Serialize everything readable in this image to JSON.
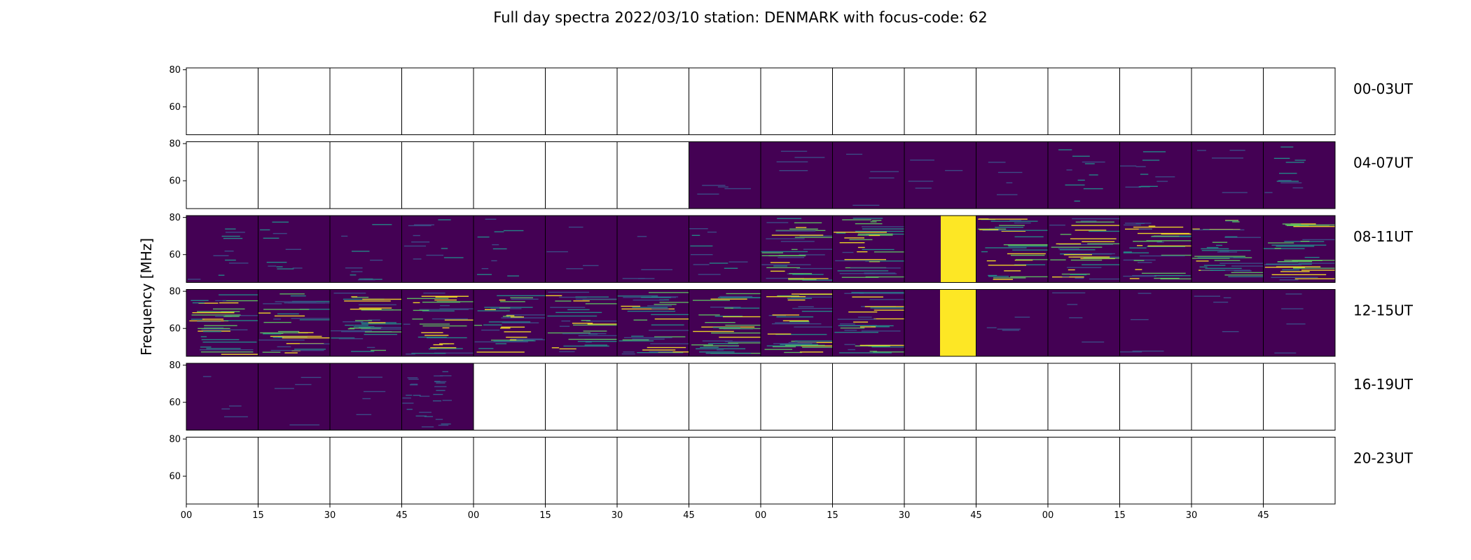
{
  "chart_data": {
    "type": "heatmap",
    "title": "Full day spectra 2022/03/10 station: DENMARK with focus-code: 62",
    "ylabel": "Frequency [MHz]",
    "y_ticks": [
      "80",
      "60"
    ],
    "ylim": [
      45,
      81
    ],
    "x_ticks": [
      "00",
      "15",
      "30",
      "45",
      "00",
      "15",
      "30",
      "45",
      "00",
      "15",
      "30",
      "45",
      "00",
      "15",
      "30",
      "45"
    ],
    "panels_per_row": 16,
    "colormap": "viridis",
    "colors": {
      "low": "#440154",
      "mid": "#21918c",
      "high": "#fde725"
    },
    "rows": [
      {
        "label": "00-03UT",
        "panels": [
          "empty",
          "empty",
          "empty",
          "empty",
          "empty",
          "empty",
          "empty",
          "empty",
          "empty",
          "empty",
          "empty",
          "empty",
          "empty",
          "empty",
          "empty",
          "empty"
        ]
      },
      {
        "label": "04-07UT",
        "panels": [
          "empty",
          "empty",
          "empty",
          "empty",
          "empty",
          "empty",
          "empty",
          "quiet",
          "quiet",
          "quiet",
          "quiet",
          "quiet",
          "weak",
          "weak",
          "quiet",
          "weak"
        ]
      },
      {
        "label": "08-11UT",
        "panels": [
          "weak",
          "weak",
          "weak",
          "weak",
          "weak",
          "quiet",
          "quiet",
          "weak",
          "strong",
          "strong",
          "saturated",
          "strong",
          "strong",
          "strong",
          "strong",
          "strong"
        ]
      },
      {
        "label": "12-15UT",
        "panels": [
          "strong",
          "strong",
          "strong",
          "strong",
          "strong",
          "strong",
          "strong",
          "strong",
          "strong",
          "strong",
          "saturated-right",
          "quiet",
          "quiet",
          "quiet",
          "quiet",
          "quiet"
        ]
      },
      {
        "label": "16-19UT",
        "panels": [
          "quiet",
          "quiet",
          "quiet",
          "noisy",
          "empty",
          "empty",
          "empty",
          "empty",
          "empty",
          "empty",
          "empty",
          "empty",
          "empty",
          "empty",
          "empty",
          "empty"
        ]
      },
      {
        "label": "20-23UT",
        "panels": [
          "empty",
          "empty",
          "empty",
          "empty",
          "empty",
          "empty",
          "empty",
          "empty",
          "empty",
          "empty",
          "empty",
          "empty",
          "empty",
          "empty",
          "empty",
          "empty"
        ]
      }
    ]
  }
}
